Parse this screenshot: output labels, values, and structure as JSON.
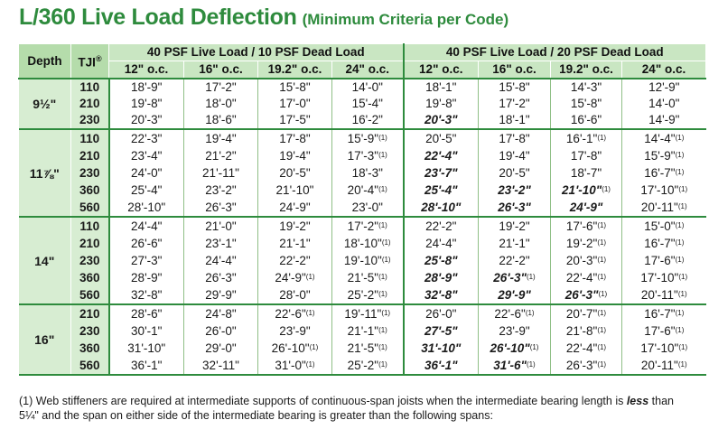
{
  "title": "L/360 Live Load Deflection",
  "subtitle": "(Minimum Criteria per Code)",
  "headers": {
    "depth": "Depth",
    "tji": "TJI",
    "tji_mark": "®",
    "group1": "40 PSF Live Load / 10 PSF Dead Load",
    "group2": "40 PSF Live Load / 20 PSF Dead Load",
    "spacings": [
      "12\" o.c.",
      "16\" o.c.",
      "19.2\" o.c.",
      "24\" o.c.",
      "12\" o.c.",
      "16\" o.c.",
      "19.2\" o.c.",
      "24\" o.c."
    ]
  },
  "groups": [
    {
      "depth": "9½\"",
      "rows": [
        {
          "tji": "110",
          "cells": [
            {
              "v": "18'-9\""
            },
            {
              "v": "17'-2\""
            },
            {
              "v": "15'-8\""
            },
            {
              "v": "14'-0\""
            },
            {
              "v": "18'-1\""
            },
            {
              "v": "15'-8\""
            },
            {
              "v": "14'-3\""
            },
            {
              "v": "12'-9\""
            }
          ]
        },
        {
          "tji": "210",
          "cells": [
            {
              "v": "19'-8\""
            },
            {
              "v": "18'-0\""
            },
            {
              "v": "17'-0\""
            },
            {
              "v": "15'-4\""
            },
            {
              "v": "19'-8\""
            },
            {
              "v": "17'-2\""
            },
            {
              "v": "15'-8\""
            },
            {
              "v": "14'-0\""
            }
          ]
        },
        {
          "tji": "230",
          "cells": [
            {
              "v": "20'-3\""
            },
            {
              "v": "18'-6\""
            },
            {
              "v": "17'-5\""
            },
            {
              "v": "16'-2\""
            },
            {
              "v": "20'-3\"",
              "b": true
            },
            {
              "v": "18'-1\""
            },
            {
              "v": "16'-6\""
            },
            {
              "v": "14'-9\""
            }
          ]
        }
      ]
    },
    {
      "depth": "11⅞\"",
      "rows": [
        {
          "tji": "110",
          "cells": [
            {
              "v": "22'-3\""
            },
            {
              "v": "19'-4\""
            },
            {
              "v": "17'-8\""
            },
            {
              "v": "15'-9\"",
              "f": "(1)"
            },
            {
              "v": "20'-5\""
            },
            {
              "v": "17'-8\""
            },
            {
              "v": "16'-1\"",
              "f": "(1)"
            },
            {
              "v": "14'-4\"",
              "f": "(1)"
            }
          ]
        },
        {
          "tji": "210",
          "cells": [
            {
              "v": "23'-4\""
            },
            {
              "v": "21'-2\""
            },
            {
              "v": "19'-4\""
            },
            {
              "v": "17'-3\"",
              "f": "(1)"
            },
            {
              "v": "22'-4\"",
              "b": true
            },
            {
              "v": "19'-4\""
            },
            {
              "v": "17'-8\""
            },
            {
              "v": "15'-9\"",
              "f": "(1)"
            }
          ]
        },
        {
          "tji": "230",
          "cells": [
            {
              "v": "24'-0\""
            },
            {
              "v": "21'-11\""
            },
            {
              "v": "20'-5\""
            },
            {
              "v": "18'-3\""
            },
            {
              "v": "23'-7\"",
              "b": true
            },
            {
              "v": "20'-5\""
            },
            {
              "v": "18'-7\""
            },
            {
              "v": "16'-7\"",
              "f": "(1)"
            }
          ]
        },
        {
          "tji": "360",
          "cells": [
            {
              "v": "25'-4\""
            },
            {
              "v": "23'-2\""
            },
            {
              "v": "21'-10\""
            },
            {
              "v": "20'-4\"",
              "f": "(1)"
            },
            {
              "v": "25'-4\"",
              "b": true
            },
            {
              "v": "23'-2\"",
              "b": true
            },
            {
              "v": "21'-10\"",
              "b": true,
              "f": "(1)"
            },
            {
              "v": "17'-10\"",
              "f": "(1)"
            }
          ]
        },
        {
          "tji": "560",
          "cells": [
            {
              "v": "28'-10\""
            },
            {
              "v": "26'-3\""
            },
            {
              "v": "24'-9\""
            },
            {
              "v": "23'-0\""
            },
            {
              "v": "28'-10\"",
              "b": true
            },
            {
              "v": "26'-3\"",
              "b": true
            },
            {
              "v": "24'-9\"",
              "b": true
            },
            {
              "v": "20'-11\"",
              "f": "(1)"
            }
          ]
        }
      ]
    },
    {
      "depth": "14\"",
      "rows": [
        {
          "tji": "110",
          "cells": [
            {
              "v": "24'-4\""
            },
            {
              "v": "21'-0\""
            },
            {
              "v": "19'-2\""
            },
            {
              "v": "17'-2\"",
              "f": "(1)"
            },
            {
              "v": "22'-2\""
            },
            {
              "v": "19'-2\""
            },
            {
              "v": "17'-6\"",
              "f": "(1)"
            },
            {
              "v": "15'-0\"",
              "f": "(1)"
            }
          ]
        },
        {
          "tji": "210",
          "cells": [
            {
              "v": "26'-6\""
            },
            {
              "v": "23'-1\""
            },
            {
              "v": "21'-1\""
            },
            {
              "v": "18'-10\"",
              "f": "(1)"
            },
            {
              "v": "24'-4\""
            },
            {
              "v": "21'-1\""
            },
            {
              "v": "19'-2\"",
              "f": "(1)"
            },
            {
              "v": "16'-7\"",
              "f": "(1)"
            }
          ]
        },
        {
          "tji": "230",
          "cells": [
            {
              "v": "27'-3\""
            },
            {
              "v": "24'-4\""
            },
            {
              "v": "22'-2\""
            },
            {
              "v": "19'-10\"",
              "f": "(1)"
            },
            {
              "v": "25'-8\"",
              "b": true
            },
            {
              "v": "22'-2\""
            },
            {
              "v": "20'-3\"",
              "f": "(1)"
            },
            {
              "v": "17'-6\"",
              "f": "(1)"
            }
          ]
        },
        {
          "tji": "360",
          "cells": [
            {
              "v": "28'-9\""
            },
            {
              "v": "26'-3\""
            },
            {
              "v": "24'-9\"",
              "f": "(1)"
            },
            {
              "v": "21'-5\"",
              "f": "(1)"
            },
            {
              "v": "28'-9\"",
              "b": true
            },
            {
              "v": "26'-3\"",
              "b": true,
              "f": "(1)"
            },
            {
              "v": "22'-4\"",
              "f": "(1)"
            },
            {
              "v": "17'-10\"",
              "f": "(1)"
            }
          ]
        },
        {
          "tji": "560",
          "cells": [
            {
              "v": "32'-8\""
            },
            {
              "v": "29'-9\""
            },
            {
              "v": "28'-0\""
            },
            {
              "v": "25'-2\"",
              "f": "(1)"
            },
            {
              "v": "32'-8\"",
              "b": true
            },
            {
              "v": "29'-9\"",
              "b": true
            },
            {
              "v": "26'-3\"",
              "b": true,
              "f": "(1)"
            },
            {
              "v": "20'-11\"",
              "f": "(1)"
            }
          ]
        }
      ]
    },
    {
      "depth": "16\"",
      "rows": [
        {
          "tji": "210",
          "cells": [
            {
              "v": "28'-6\""
            },
            {
              "v": "24'-8\""
            },
            {
              "v": "22'-6\"",
              "f": "(1)"
            },
            {
              "v": "19'-11\"",
              "f": "(1)"
            },
            {
              "v": "26'-0\""
            },
            {
              "v": "22'-6\"",
              "f": "(1)"
            },
            {
              "v": "20'-7\"",
              "f": "(1)"
            },
            {
              "v": "16'-7\"",
              "f": "(1)"
            }
          ]
        },
        {
          "tji": "230",
          "cells": [
            {
              "v": "30'-1\""
            },
            {
              "v": "26'-0\""
            },
            {
              "v": "23'-9\""
            },
            {
              "v": "21'-1\"",
              "f": "(1)"
            },
            {
              "v": "27'-5\"",
              "b": true
            },
            {
              "v": "23'-9\""
            },
            {
              "v": "21'-8\"",
              "f": "(1)"
            },
            {
              "v": "17'-6\"",
              "f": "(1)"
            }
          ]
        },
        {
          "tji": "360",
          "cells": [
            {
              "v": "31'-10\""
            },
            {
              "v": "29'-0\""
            },
            {
              "v": "26'-10\"",
              "f": "(1)"
            },
            {
              "v": "21'-5\"",
              "f": "(1)"
            },
            {
              "v": "31'-10\"",
              "b": true
            },
            {
              "v": "26'-10\"",
              "b": true,
              "f": "(1)"
            },
            {
              "v": "22'-4\"",
              "f": "(1)"
            },
            {
              "v": "17'-10\"",
              "f": "(1)"
            }
          ]
        },
        {
          "tji": "560",
          "cells": [
            {
              "v": "36'-1\""
            },
            {
              "v": "32'-11\""
            },
            {
              "v": "31'-0\"",
              "f": "(1)"
            },
            {
              "v": "25'-2\"",
              "f": "(1)"
            },
            {
              "v": "36'-1\"",
              "b": true
            },
            {
              "v": "31'-6\"",
              "b": true,
              "f": "(1)"
            },
            {
              "v": "26'-3\"",
              "f": "(1)"
            },
            {
              "v": "20'-11\"",
              "f": "(1)"
            }
          ]
        }
      ]
    }
  ],
  "footnote": {
    "part1": "(1) Web stiffeners are required at intermediate supports of continuous-span joists when the intermediate bearing length is ",
    "emphasis": "less",
    "part2": " than 5¼\" and the span on either side of the intermediate bearing is greater than the following spans:"
  },
  "colors": {
    "title_green": "#2e8b3d",
    "header_green": "#c9e6c2",
    "depth_green": "#d7edd2"
  }
}
